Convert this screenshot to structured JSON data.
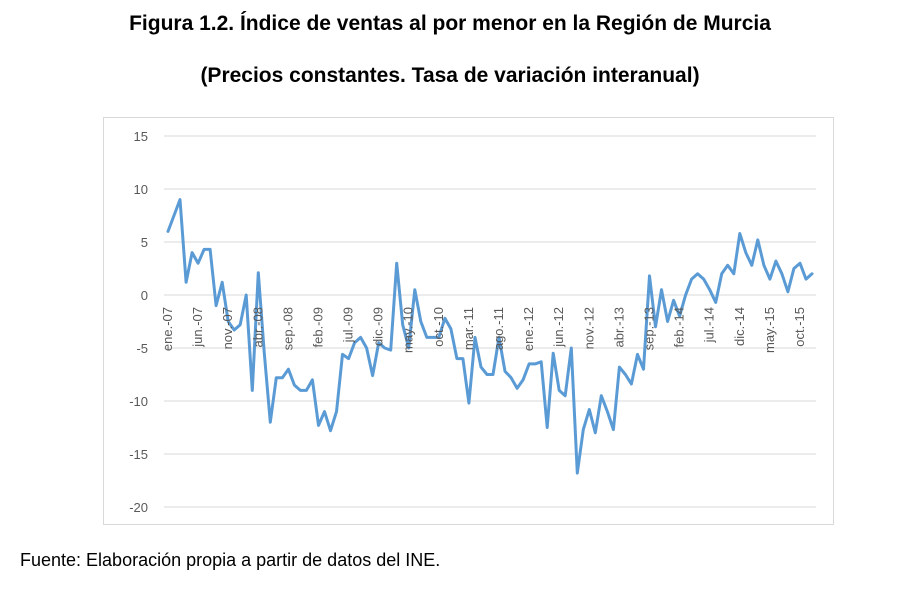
{
  "title": "Figura 1.2. Índice de ventas al por menor en la Región de Murcia",
  "subtitle": "(Precios constantes. Tasa de variación interanual)",
  "source": "Fuente: Elaboración propia a partir de datos del INE.",
  "colors": {
    "line": "#5B9BD5",
    "grid": "#d9d9d9",
    "tick_text": "#595959"
  },
  "chart_data": {
    "type": "line",
    "title": "",
    "xlabel": "",
    "ylabel": "",
    "ylim": [
      -20,
      15
    ],
    "yticks": [
      15,
      10,
      5,
      0,
      -5,
      -10,
      -15,
      -20
    ],
    "grid": true,
    "x_ticks": [
      {
        "label": "ene.-07",
        "index": 0
      },
      {
        "label": "jun.-07",
        "index": 5
      },
      {
        "label": "nov.-07",
        "index": 10
      },
      {
        "label": "abr.-08",
        "index": 15
      },
      {
        "label": "sep.-08",
        "index": 20
      },
      {
        "label": "feb.-09",
        "index": 25
      },
      {
        "label": "jul.-09",
        "index": 30
      },
      {
        "label": "dic.-09",
        "index": 35
      },
      {
        "label": "may.-10",
        "index": 40
      },
      {
        "label": "oct.-10",
        "index": 45
      },
      {
        "label": "mar.-11",
        "index": 50
      },
      {
        "label": "ago.-11",
        "index": 55
      },
      {
        "label": "ene.-12",
        "index": 60
      },
      {
        "label": "jun.-12",
        "index": 65
      },
      {
        "label": "nov.-12",
        "index": 70
      },
      {
        "label": "abr.-13",
        "index": 75
      },
      {
        "label": "sep.-13",
        "index": 80
      },
      {
        "label": "feb.-14",
        "index": 85
      },
      {
        "label": "jul.-14",
        "index": 90
      },
      {
        "label": "dic.-14",
        "index": 95
      },
      {
        "label": "may.-15",
        "index": 100
      },
      {
        "label": "oct.-15",
        "index": 105
      }
    ],
    "series": [
      {
        "values": [
          6.0,
          7.5,
          9.0,
          1.2,
          4.0,
          3.0,
          4.3,
          4.3,
          -1.0,
          1.2,
          -2.5,
          -3.3,
          -2.8,
          0.0,
          -9.0,
          2.1,
          -5.5,
          -12.0,
          -7.8,
          -7.8,
          -7.0,
          -8.5,
          -9.0,
          -9.0,
          -8.0,
          -12.3,
          -11.0,
          -12.8,
          -11.0,
          -5.6,
          -6.0,
          -4.5,
          -4.0,
          -5.0,
          -7.6,
          -4.5,
          -5.0,
          -5.2,
          3.0,
          -2.8,
          -5.0,
          0.5,
          -2.5,
          -4.0,
          -4.0,
          -4.0,
          -2.2,
          -3.2,
          -6.0,
          -6.0,
          -10.2,
          -4.0,
          -6.8,
          -7.5,
          -7.5,
          -4.0,
          -7.2,
          -7.8,
          -8.8,
          -8.0,
          -6.5,
          -6.5,
          -6.3,
          -12.5,
          -5.5,
          -9.0,
          -9.5,
          -5.0,
          -16.8,
          -12.7,
          -10.8,
          -13.0,
          -9.5,
          -11.0,
          -12.7,
          -6.8,
          -7.5,
          -8.4,
          -5.6,
          -7.0,
          1.8,
          -3.0,
          0.5,
          -2.5,
          -0.5,
          -2.0,
          0.0,
          1.5,
          2.0,
          1.5,
          0.5,
          -0.7,
          2.0,
          2.8,
          2.0,
          5.8,
          4.0,
          2.8,
          5.2,
          2.8,
          1.5,
          3.2,
          2.0,
          0.3,
          2.5,
          3.0,
          1.5,
          2.0
        ]
      }
    ]
  }
}
